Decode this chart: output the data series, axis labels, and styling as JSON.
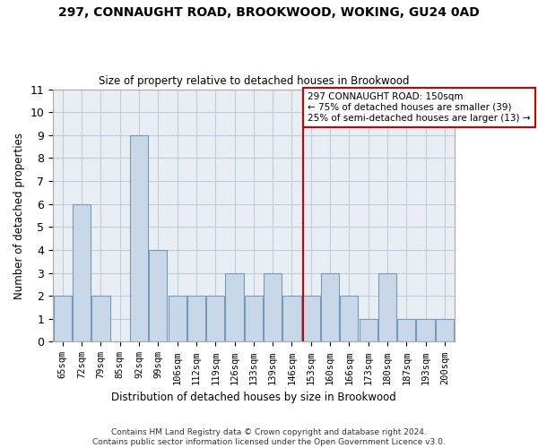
{
  "title": "297, CONNAUGHT ROAD, BROOKWOOD, WOKING, GU24 0AD",
  "subtitle": "Size of property relative to detached houses in Brookwood",
  "xlabel": "Distribution of detached houses by size in Brookwood",
  "ylabel": "Number of detached properties",
  "footnote1": "Contains HM Land Registry data © Crown copyright and database right 2024.",
  "footnote2": "Contains public sector information licensed under the Open Government Licence v3.0.",
  "bar_labels": [
    "65sqm",
    "72sqm",
    "79sqm",
    "85sqm",
    "92sqm",
    "99sqm",
    "106sqm",
    "112sqm",
    "119sqm",
    "126sqm",
    "133sqm",
    "139sqm",
    "146sqm",
    "153sqm",
    "160sqm",
    "166sqm",
    "173sqm",
    "180sqm",
    "187sqm",
    "193sqm",
    "200sqm"
  ],
  "bar_values": [
    2,
    6,
    2,
    0,
    9,
    4,
    2,
    2,
    2,
    3,
    2,
    3,
    2,
    2,
    3,
    2,
    1,
    3,
    1,
    1,
    1
  ],
  "bar_color": "#c8d8e8",
  "bar_edge_color": "#7799bb",
  "grid_color": "#c0ccd8",
  "bg_color": "#e8eef4",
  "annotation_line_label": "297 CONNAUGHT ROAD: 150sqm",
  "annotation_line_sub1": "← 75% of detached houses are smaller (39)",
  "annotation_line_sub2": "25% of semi-detached houses are larger (13) →",
  "annotation_box_color": "#cc0000",
  "ylim": [
    0,
    11
  ],
  "yticks": [
    0,
    1,
    2,
    3,
    4,
    5,
    6,
    7,
    8,
    9,
    10,
    11
  ]
}
